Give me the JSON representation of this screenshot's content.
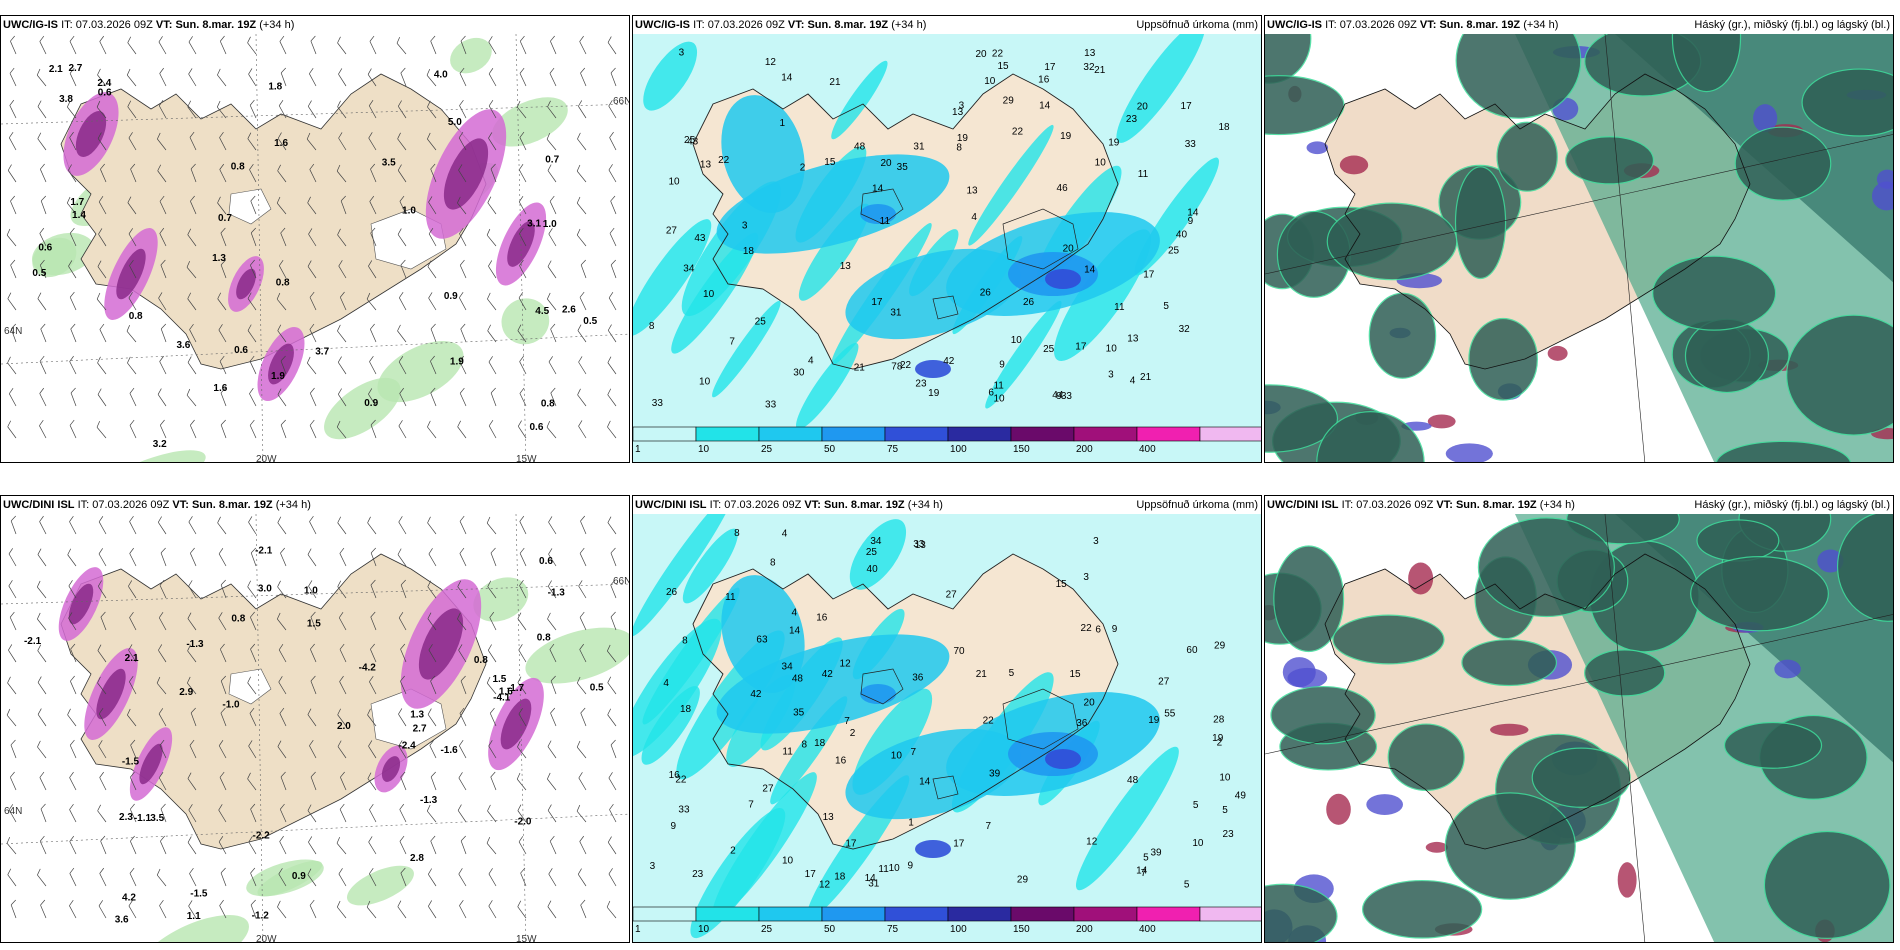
{
  "panels": [
    {
      "model": "UWC/IG-IS",
      "it_label": "IT:",
      "it_value": "07.03.2026 09Z",
      "vt_label": "VT:",
      "vt_value": "Sun. 8.mar. 19Z",
      "lead": "(+34 h)",
      "right_title": "",
      "type": "wind-pressure",
      "labels": [
        "1.0",
        "0.7",
        "3.8",
        "3.7",
        "2.4",
        "3.1",
        "1.6",
        "0.6",
        "1.4",
        "4.0",
        "2.6",
        "1.7",
        "0.5",
        "0.6",
        "0.8",
        "1.8",
        "0.7",
        "0.9",
        "0.8",
        "0.6",
        "0.5",
        "1.3",
        "2.1",
        "1.9",
        "1.6",
        "3.2",
        "3.6",
        "2.7",
        "5.0",
        "4.5",
        "3.5",
        "0.8",
        "0.9",
        "0.8",
        "0.6",
        "1.9",
        "1.0"
      ],
      "coords": [
        "20W",
        "15W",
        "66N",
        "64N"
      ]
    },
    {
      "model": "UWC/IG-IS",
      "it_label": "IT:",
      "it_value": "07.03.2026 09Z",
      "vt_label": "VT:",
      "vt_value": "Sun. 8.mar. 19Z",
      "lead": "(+34 h)",
      "right_title": "Uppsöfnuð úrkoma (mm)",
      "type": "precip",
      "labels": [
        "9",
        "8",
        "4",
        "1",
        "3",
        "3",
        "18",
        "21",
        "17",
        "2",
        "3",
        "11",
        "22",
        "33",
        "29",
        "23",
        "27",
        "3",
        "14",
        "19",
        "4",
        "4",
        "6",
        "15",
        "10",
        "25",
        "21",
        "7",
        "10",
        "5",
        "10",
        "18",
        "42",
        "30",
        "14",
        "26",
        "23",
        "10",
        "11",
        "13",
        "16",
        "13",
        "17",
        "19",
        "46",
        "44",
        "34",
        "20",
        "31",
        "43",
        "43",
        "48",
        "13",
        "13",
        "21",
        "35",
        "25",
        "33",
        "78",
        "17",
        "10",
        "20",
        "20",
        "32",
        "33",
        "31",
        "17",
        "14",
        "15",
        "22",
        "22",
        "22",
        "25",
        "40",
        "26",
        "19",
        "11",
        "11",
        "17",
        "21",
        "14",
        "19",
        "33",
        "32",
        "25",
        "14",
        "12",
        "20",
        "13",
        "10",
        "9",
        "10",
        "10",
        "13",
        "9",
        "8"
      ],
      "colorbar_ticks": [
        "1",
        "10",
        "25",
        "50",
        "75",
        "100",
        "150",
        "200",
        "400"
      ],
      "colorbar_colors": [
        "#c8f7f7",
        "#22e3e8",
        "#1fc8ef",
        "#1f98f0",
        "#3050d8",
        "#2a2aa0",
        "#6a0a6a",
        "#a0107a",
        "#f020b0",
        "#f0b8f0"
      ]
    },
    {
      "model": "UWC/IG-IS",
      "it_label": "IT:",
      "it_value": "07.03.2026 09Z",
      "vt_label": "VT:",
      "vt_value": "Sun. 8.mar. 19Z",
      "lead": "(+34 h)",
      "right_title": "Háský (gr.), miðský (fj.bl.) og lágský (bl.)",
      "type": "clouds"
    },
    {
      "model": "UWC/DINI ISL",
      "it_label": "IT:",
      "it_value": "07.03.2026 09Z",
      "vt_label": "VT:",
      "vt_value": "Sun. 8.mar. 19Z",
      "lead": "(+34 h)",
      "right_title": "",
      "type": "wind-pressure",
      "labels": [
        "-1.5",
        "-1.3",
        "0.5",
        "2.0",
        "-1.6",
        "-2.0",
        "2.7",
        "1.5",
        "1.6",
        "-2.1",
        "0.6",
        "3.5",
        "-1.3",
        "1.1",
        "-2.1",
        "1.3",
        "-1.0",
        "-1.3",
        "-2.4",
        "-2.2",
        "-1.2",
        "2.3",
        "0.8",
        "0.8",
        "-4.2",
        "-4.1",
        "0.9",
        "-1.1",
        "-1.7",
        "1.0",
        "0.8",
        "-1.5",
        "2.9",
        "3.0",
        "2.1",
        "3.6",
        "2.8",
        "4.2",
        "1.5"
      ],
      "coords": [
        "20W",
        "15W",
        "66N",
        "64N"
      ]
    },
    {
      "model": "UWC/DINI ISL",
      "it_label": "IT:",
      "it_value": "07.03.2026 09Z",
      "vt_label": "VT:",
      "vt_value": "Sun. 8.mar. 19Z",
      "lead": "(+34 h)",
      "right_title": "Uppsöfnuð úrkoma (mm)",
      "type": "precip",
      "labels": [
        "7",
        "7",
        "9",
        "14",
        "19",
        "2",
        "4",
        "5",
        "4",
        "8",
        "29",
        "28",
        "22",
        "17",
        "1",
        "2",
        "14",
        "4",
        "6",
        "11",
        "22",
        "5",
        "3",
        "7",
        "10",
        "12",
        "36",
        "34",
        "20",
        "33",
        "26",
        "8",
        "8",
        "15",
        "16",
        "2",
        "5",
        "3",
        "5",
        "18",
        "42",
        "31",
        "34",
        "48",
        "55",
        "60",
        "63",
        "48",
        "49",
        "36",
        "17",
        "19",
        "25",
        "12",
        "11",
        "18",
        "22",
        "39",
        "70",
        "39",
        "13",
        "10",
        "15",
        "17",
        "13",
        "14",
        "29",
        "27",
        "21",
        "27",
        "40",
        "23",
        "16",
        "10",
        "14",
        "18",
        "10",
        "33",
        "27",
        "35",
        "42",
        "16",
        "23",
        "7",
        "10",
        "11",
        "8",
        "9",
        "9",
        "12",
        "7",
        "5",
        "3"
      ],
      "colorbar_ticks": [
        "1",
        "10",
        "25",
        "50",
        "75",
        "100",
        "150",
        "200",
        "400"
      ],
      "colorbar_colors": [
        "#c8f7f7",
        "#22e3e8",
        "#1fc8ef",
        "#1f98f0",
        "#3050d8",
        "#2a2aa0",
        "#6a0a6a",
        "#a0107a",
        "#f020b0",
        "#f0b8f0"
      ]
    },
    {
      "model": "UWC/DINI ISL",
      "it_label": "IT:",
      "it_value": "07.03.2026 09Z",
      "vt_label": "VT:",
      "vt_value": "Sun. 8.mar. 19Z",
      "lead": "(+34 h)",
      "right_title": "Háský (gr.), miðský (fj.bl.) og lágský (bl.)",
      "type": "clouds"
    }
  ]
}
